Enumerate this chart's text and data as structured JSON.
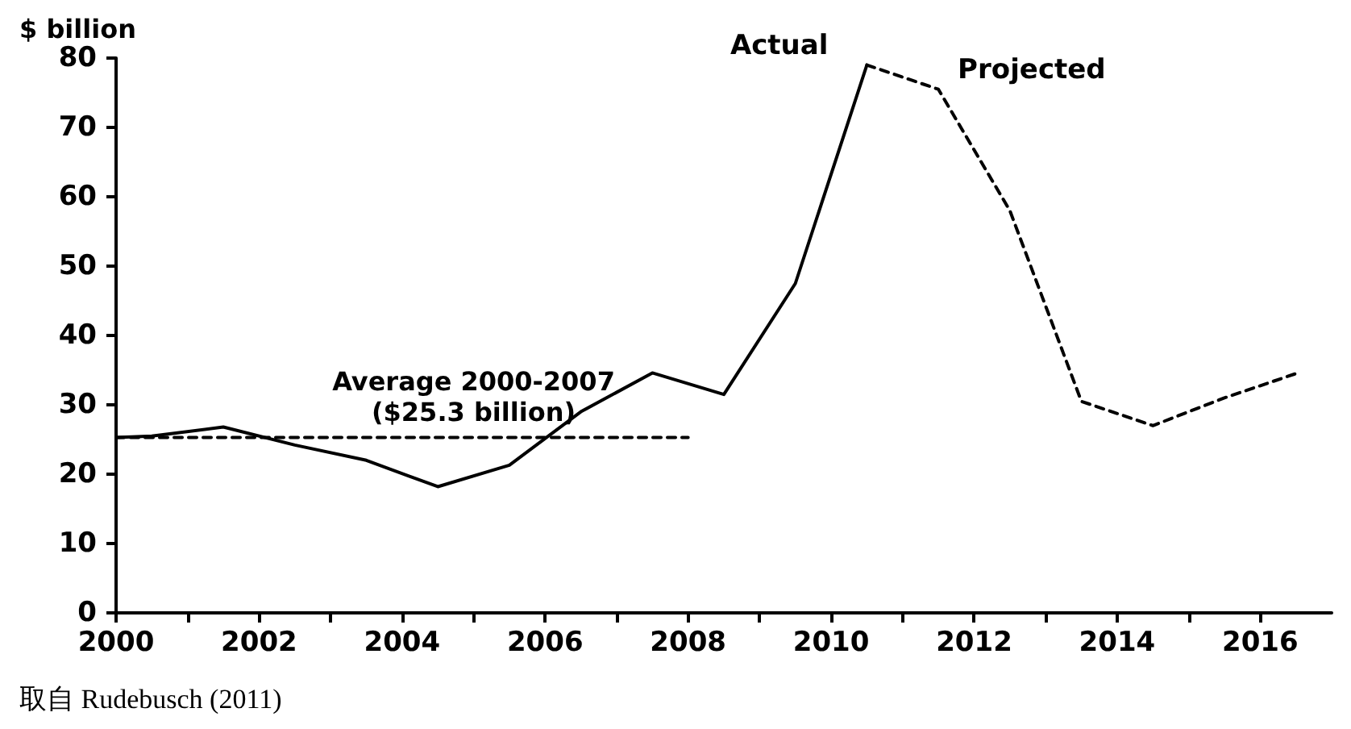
{
  "chart_data": {
    "type": "line",
    "ylabel": "$ billion",
    "legend": false,
    "grid": false,
    "marker": "none",
    "xlim": [
      2000,
      2017
    ],
    "ylim": [
      0,
      80
    ],
    "xticks": [
      2000,
      {
        "value": 2001,
        "label": null
      },
      2002,
      {
        "value": 2003,
        "label": null
      },
      2004,
      {
        "value": 2005,
        "label": null
      },
      2006,
      {
        "value": 2007,
        "label": null
      },
      2008,
      {
        "value": 2009,
        "label": null
      },
      2010,
      {
        "value": 2011,
        "label": null
      },
      2012,
      {
        "value": 2013,
        "label": null
      },
      2014,
      {
        "value": 2015,
        "label": null
      },
      2016
    ],
    "yticks": [
      0,
      10,
      20,
      30,
      40,
      50,
      60,
      70,
      80
    ],
    "series": [
      {
        "name": "Actual",
        "color": "#000000",
        "line_style": "solid",
        "x": [
          2000,
          2000.5,
          2001.5,
          2002.5,
          2003.5,
          2004.5,
          2005.5,
          2006.5,
          2007.5,
          2008.5,
          2009.5,
          2010.5
        ],
        "values": [
          25.3,
          25.5,
          26.8,
          24.2,
          22,
          18.2,
          21.3,
          29,
          34.6,
          31.5,
          47.5,
          79
        ]
      },
      {
        "name": "Projected",
        "color": "#000000",
        "line_style": "dashed",
        "x": [
          2010.5,
          2011.5,
          2012.5,
          2013.5,
          2014.5,
          2015.5,
          2016.5
        ],
        "values": [
          79,
          75.5,
          58,
          30.5,
          27,
          31,
          34.5
        ]
      },
      {
        "color": "#000000",
        "line_style": "dashed",
        "x": [
          2000,
          2008
        ],
        "values": [
          25.3,
          25.3
        ]
      }
    ],
    "annotations": [
      {
        "text": "Average 2000-2007\n($25.3 billion)",
        "x": 2005,
        "y": 25.3
      },
      "取自 Rudebusch (2011)"
    ]
  }
}
